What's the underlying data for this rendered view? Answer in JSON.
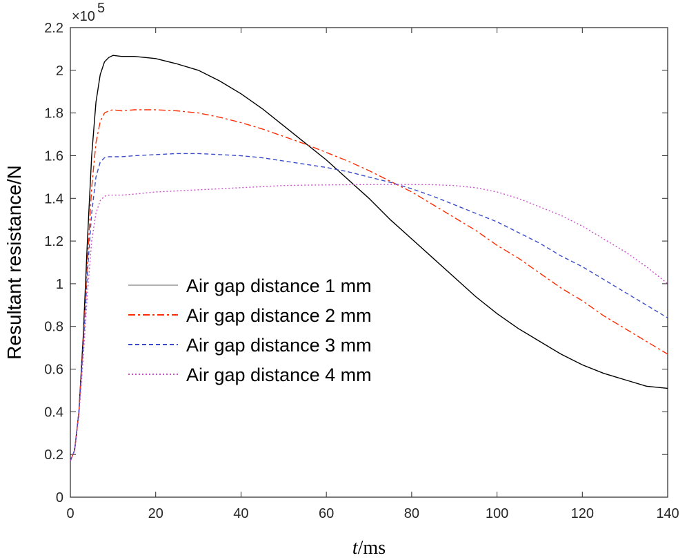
{
  "chart_data": {
    "type": "line",
    "xlabel_italic": "t",
    "xlabel_unit": "/ms",
    "ylabel": "Resultant resistance/N",
    "y_exponent_base": "×10",
    "y_exponent_power": "5",
    "xlim": [
      0,
      140
    ],
    "ylim": [
      0,
      2.2
    ],
    "x_ticks": [
      "0",
      "20",
      "40",
      "60",
      "80",
      "100",
      "120",
      "140"
    ],
    "y_ticks": [
      "0",
      "0.2",
      "0.4",
      "0.6",
      "0.8",
      "1",
      "1.2",
      "1.4",
      "1.6",
      "1.8",
      "2",
      "2.2"
    ],
    "grid": false,
    "legend_position": "center-left",
    "series": [
      {
        "name": "Air gap distance 1 mm",
        "color": "#000000",
        "dash": "",
        "x": [
          0,
          1,
          2,
          3,
          4,
          5,
          6,
          7,
          8,
          9,
          10,
          12,
          15,
          20,
          25,
          30,
          35,
          40,
          45,
          50,
          55,
          60,
          65,
          70,
          75,
          80,
          85,
          90,
          95,
          100,
          105,
          110,
          115,
          120,
          125,
          130,
          135,
          140
        ],
        "y": [
          0.17,
          0.22,
          0.4,
          0.75,
          1.2,
          1.6,
          1.85,
          1.98,
          2.04,
          2.06,
          2.07,
          2.065,
          2.065,
          2.055,
          2.03,
          2.0,
          1.95,
          1.89,
          1.82,
          1.74,
          1.66,
          1.58,
          1.49,
          1.4,
          1.3,
          1.21,
          1.12,
          1.03,
          0.94,
          0.86,
          0.79,
          0.73,
          0.67,
          0.62,
          0.58,
          0.55,
          0.52,
          0.51
        ]
      },
      {
        "name": "Air gap distance 2 mm",
        "color": "#ff2a00",
        "dash": "10,4,3,4",
        "x": [
          0,
          1,
          2,
          3,
          4,
          5,
          6,
          7,
          8,
          9,
          10,
          12,
          15,
          20,
          25,
          30,
          35,
          40,
          45,
          50,
          55,
          60,
          65,
          70,
          75,
          80,
          85,
          90,
          95,
          100,
          105,
          110,
          115,
          120,
          125,
          130,
          135,
          140
        ],
        "y": [
          0.17,
          0.22,
          0.4,
          0.72,
          1.1,
          1.45,
          1.66,
          1.76,
          1.8,
          1.81,
          1.815,
          1.81,
          1.815,
          1.815,
          1.81,
          1.8,
          1.78,
          1.755,
          1.725,
          1.69,
          1.655,
          1.615,
          1.575,
          1.53,
          1.48,
          1.43,
          1.37,
          1.31,
          1.25,
          1.18,
          1.12,
          1.05,
          0.98,
          0.92,
          0.85,
          0.79,
          0.73,
          0.67
        ]
      },
      {
        "name": "Air gap distance 3 mm",
        "color": "#3a4bc8",
        "dash": "6,4",
        "x": [
          0,
          1,
          2,
          3,
          4,
          5,
          6,
          7,
          8,
          9,
          10,
          12,
          15,
          20,
          25,
          30,
          35,
          40,
          45,
          50,
          55,
          60,
          65,
          70,
          75,
          80,
          85,
          90,
          95,
          100,
          105,
          110,
          115,
          120,
          125,
          130,
          135,
          140
        ],
        "y": [
          0.17,
          0.22,
          0.4,
          0.7,
          1.05,
          1.33,
          1.5,
          1.57,
          1.59,
          1.595,
          1.595,
          1.595,
          1.6,
          1.605,
          1.61,
          1.61,
          1.605,
          1.6,
          1.59,
          1.575,
          1.56,
          1.545,
          1.525,
          1.5,
          1.475,
          1.445,
          1.41,
          1.37,
          1.33,
          1.29,
          1.24,
          1.19,
          1.13,
          1.08,
          1.02,
          0.96,
          0.9,
          0.84
        ]
      },
      {
        "name": "Air gap distance 4 mm",
        "color": "#c850c8",
        "dash": "2,3",
        "x": [
          0,
          1,
          2,
          3,
          4,
          5,
          6,
          7,
          8,
          9,
          10,
          12,
          15,
          20,
          25,
          30,
          35,
          40,
          45,
          50,
          55,
          60,
          65,
          70,
          75,
          80,
          85,
          90,
          95,
          100,
          105,
          110,
          115,
          120,
          125,
          130,
          135,
          140
        ],
        "y": [
          0.17,
          0.22,
          0.38,
          0.65,
          0.95,
          1.2,
          1.33,
          1.39,
          1.41,
          1.415,
          1.415,
          1.415,
          1.42,
          1.43,
          1.435,
          1.44,
          1.445,
          1.45,
          1.455,
          1.46,
          1.462,
          1.463,
          1.464,
          1.465,
          1.465,
          1.465,
          1.464,
          1.46,
          1.45,
          1.43,
          1.4,
          1.36,
          1.32,
          1.27,
          1.21,
          1.15,
          1.08,
          1.0
        ]
      }
    ]
  }
}
